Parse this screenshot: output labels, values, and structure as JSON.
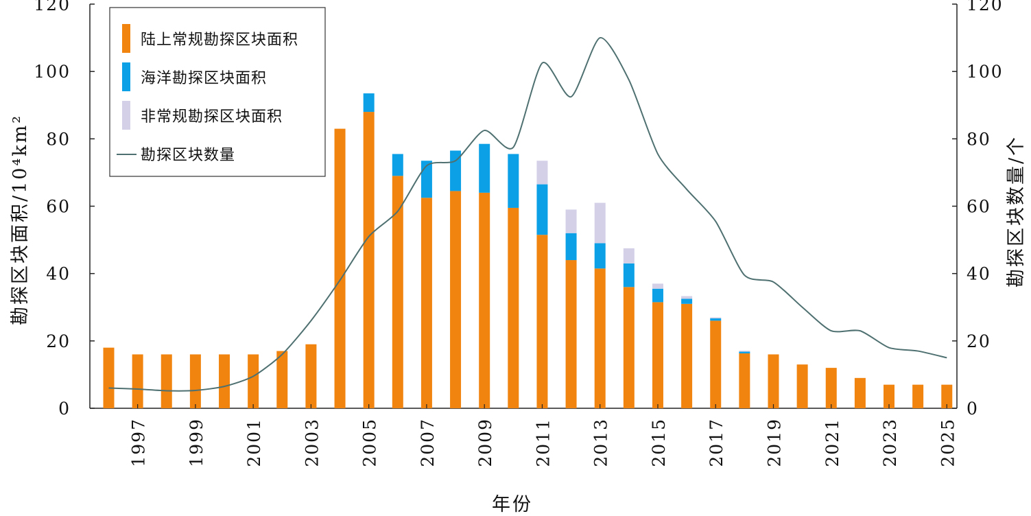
{
  "chart_data": {
    "type": "bar",
    "stacked": true,
    "x_label": "年份",
    "y_left_label": "勘探区块面积/10⁴km²",
    "y_right_label": "勘探区块数量/个",
    "y_left_range": [
      0,
      120
    ],
    "y_right_range": [
      0,
      120
    ],
    "y_ticks": [
      0,
      20,
      40,
      60,
      80,
      100,
      120
    ],
    "years": [
      1996,
      1997,
      1998,
      1999,
      2000,
      2001,
      2002,
      2003,
      2004,
      2005,
      2006,
      2007,
      2008,
      2009,
      2010,
      2011,
      2012,
      2013,
      2014,
      2015,
      2016,
      2017,
      2018,
      2019,
      2020,
      2021,
      2022,
      2023,
      2024,
      2025
    ],
    "x_tick_labels": [
      "1997",
      "1999",
      "2001",
      "2003",
      "2005",
      "2007",
      "2009",
      "2011",
      "2013",
      "2015",
      "2017",
      "2019",
      "2021",
      "2023",
      "2025"
    ],
    "legend_position": "top-left",
    "series": [
      {
        "name": "陆上常规勘探区块面积",
        "color": "#F0840F",
        "axis": "left",
        "values": [
          18,
          16,
          16,
          16,
          16,
          16,
          17,
          19,
          83,
          88,
          69,
          62.5,
          64.5,
          64,
          59.5,
          51.5,
          44,
          41.5,
          36,
          31.5,
          31,
          26,
          16.3,
          16,
          13,
          12,
          9,
          7,
          7,
          7
        ]
      },
      {
        "name": "海洋勘探区块面积",
        "color": "#0CA1E6",
        "axis": "left",
        "values": [
          0,
          0,
          0,
          0,
          0,
          0,
          0,
          0,
          0,
          5.5,
          6.5,
          11,
          12,
          14.5,
          16,
          15,
          8,
          7.5,
          7,
          4,
          1.5,
          0.7,
          0.5,
          0,
          0,
          0,
          0,
          0,
          0,
          0
        ]
      },
      {
        "name": "非常规勘探区块面积",
        "color": "#D3D0E8",
        "axis": "left",
        "values": [
          0,
          0,
          0,
          0,
          0,
          0,
          0,
          0,
          0,
          0,
          0,
          0,
          0,
          0,
          0,
          7,
          7,
          12,
          4.5,
          1.5,
          0.8,
          0.3,
          0.3,
          0,
          0,
          0,
          0,
          0,
          0,
          0
        ]
      },
      {
        "name": "勘探区块数量",
        "color": "#4F7070",
        "axis": "right",
        "type": "line",
        "values": [
          6,
          5.7,
          5.2,
          5.3,
          6.5,
          9.5,
          16,
          26,
          38,
          51,
          58.5,
          72,
          73.5,
          82.5,
          77.5,
          102.5,
          92.5,
          110,
          97.5,
          75.5,
          65,
          55.5,
          39.5,
          37.5,
          30,
          23,
          23,
          18,
          17,
          15
        ]
      }
    ]
  }
}
